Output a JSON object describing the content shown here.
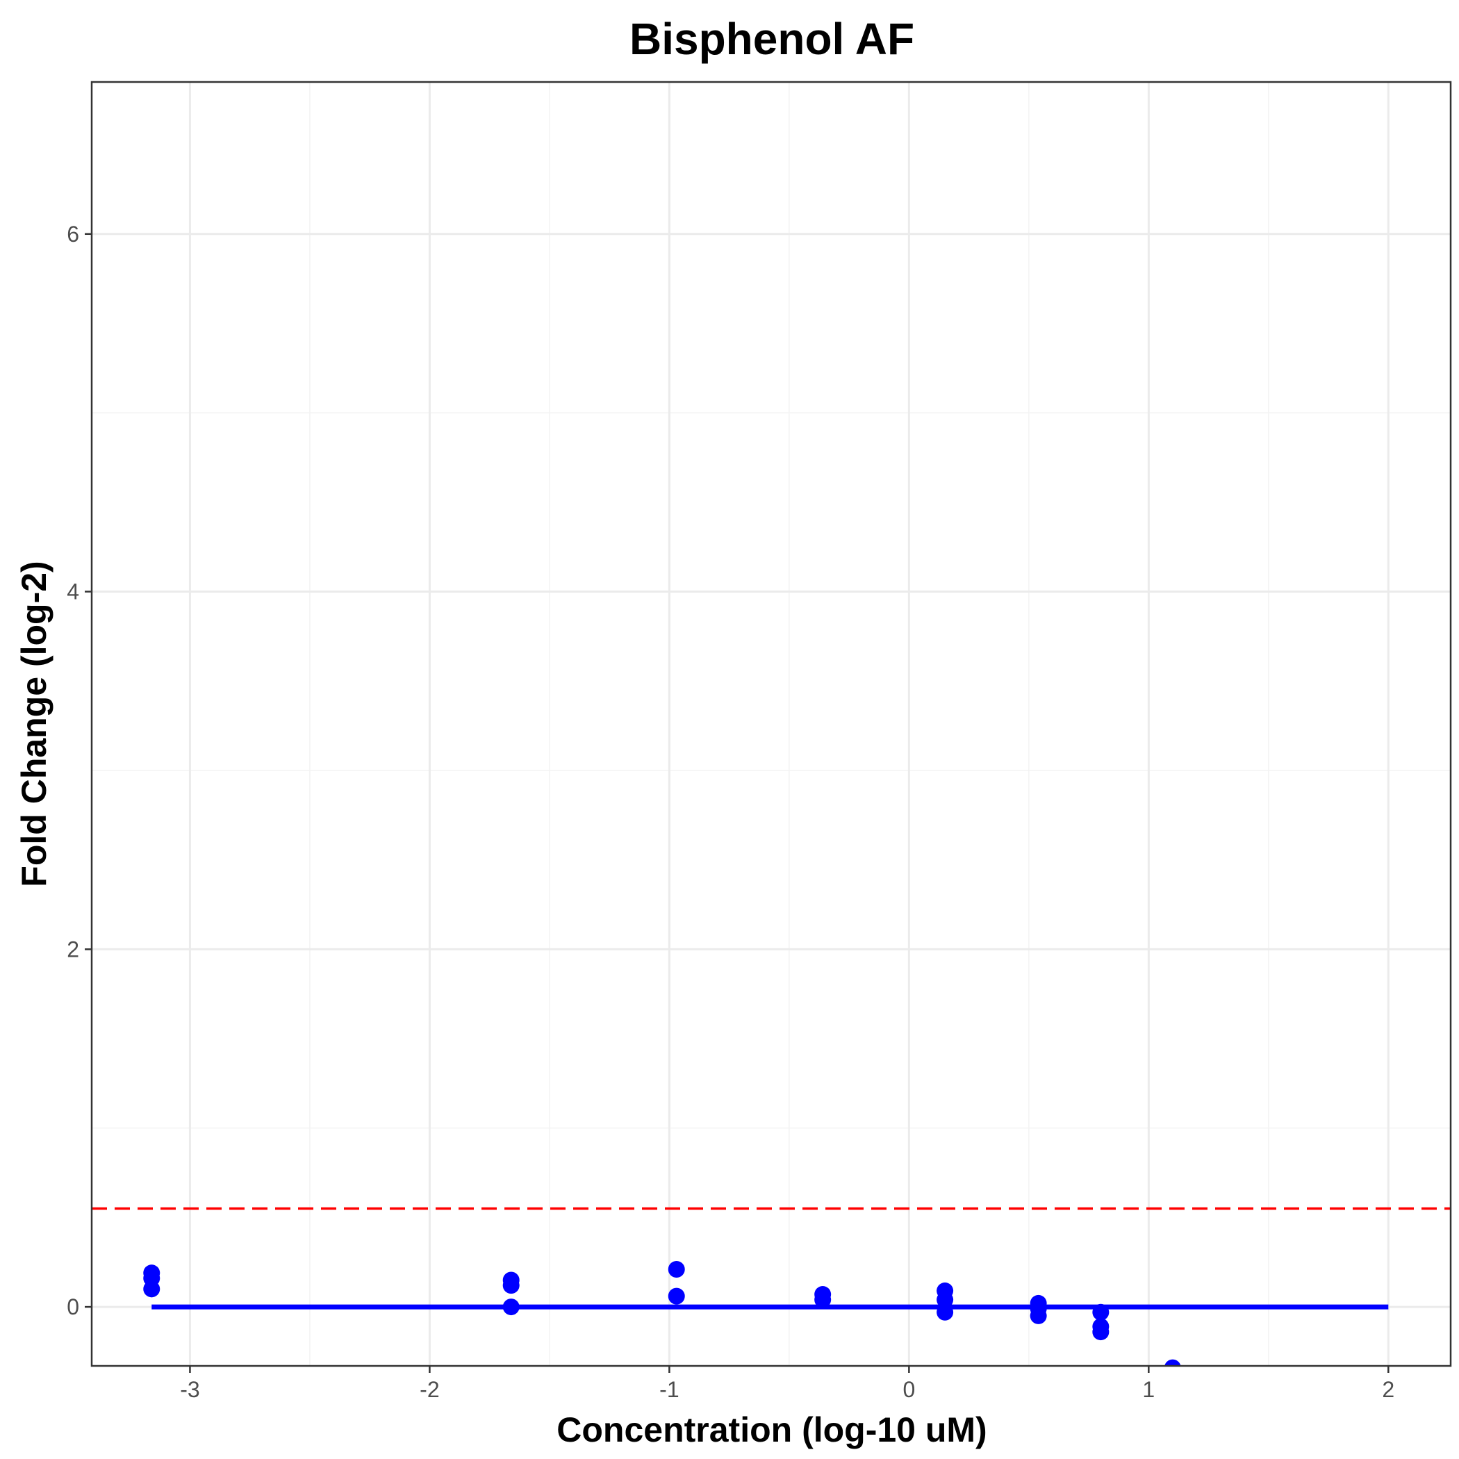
{
  "chart_data": {
    "type": "scatter",
    "title": "Bisphenol AF",
    "xlabel": "Concentration (log-10 uM)",
    "ylabel": "Fold Change (log-2)",
    "xlim": [
      -3.41,
      2.26
    ],
    "ylim": [
      -0.33,
      6.85
    ],
    "x_ticks": [
      -3,
      -2,
      -1,
      0,
      1,
      2
    ],
    "x_tick_labels": [
      "-3",
      "-2",
      "-1",
      "0",
      "1",
      "2"
    ],
    "y_ticks": [
      0,
      2,
      4,
      6
    ],
    "y_tick_labels": [
      "0",
      "2",
      "4",
      "6"
    ],
    "grid": true,
    "points": [
      {
        "x": -3.16,
        "y": 0.19
      },
      {
        "x": -3.16,
        "y": 0.16
      },
      {
        "x": -3.16,
        "y": 0.1
      },
      {
        "x": -1.66,
        "y": 0.15
      },
      {
        "x": -1.66,
        "y": 0.12
      },
      {
        "x": -1.66,
        "y": 0.0
      },
      {
        "x": -0.97,
        "y": 0.21
      },
      {
        "x": -0.97,
        "y": 0.06
      },
      {
        "x": -0.36,
        "y": 0.07
      },
      {
        "x": -0.36,
        "y": 0.04
      },
      {
        "x": 0.15,
        "y": 0.09
      },
      {
        "x": 0.15,
        "y": 0.04
      },
      {
        "x": 0.15,
        "y": -0.03
      },
      {
        "x": 0.54,
        "y": 0.02
      },
      {
        "x": 0.54,
        "y": -0.01
      },
      {
        "x": 0.54,
        "y": -0.05
      },
      {
        "x": 0.8,
        "y": -0.03
      },
      {
        "x": 0.8,
        "y": -0.11
      },
      {
        "x": 0.8,
        "y": -0.14
      },
      {
        "x": 1.1,
        "y": -0.34
      }
    ],
    "fit_line": {
      "x": [
        -3.16,
        2.0
      ],
      "y": [
        0.0,
        0.0
      ]
    },
    "threshold": {
      "y": 0.55
    },
    "colors": {
      "points": "#0000ff",
      "fit": "#0000ff",
      "threshold": "#ff0000",
      "grid_major": "#ebebeb",
      "grid_minor": "#f3f3f3",
      "frame": "#333333"
    }
  }
}
